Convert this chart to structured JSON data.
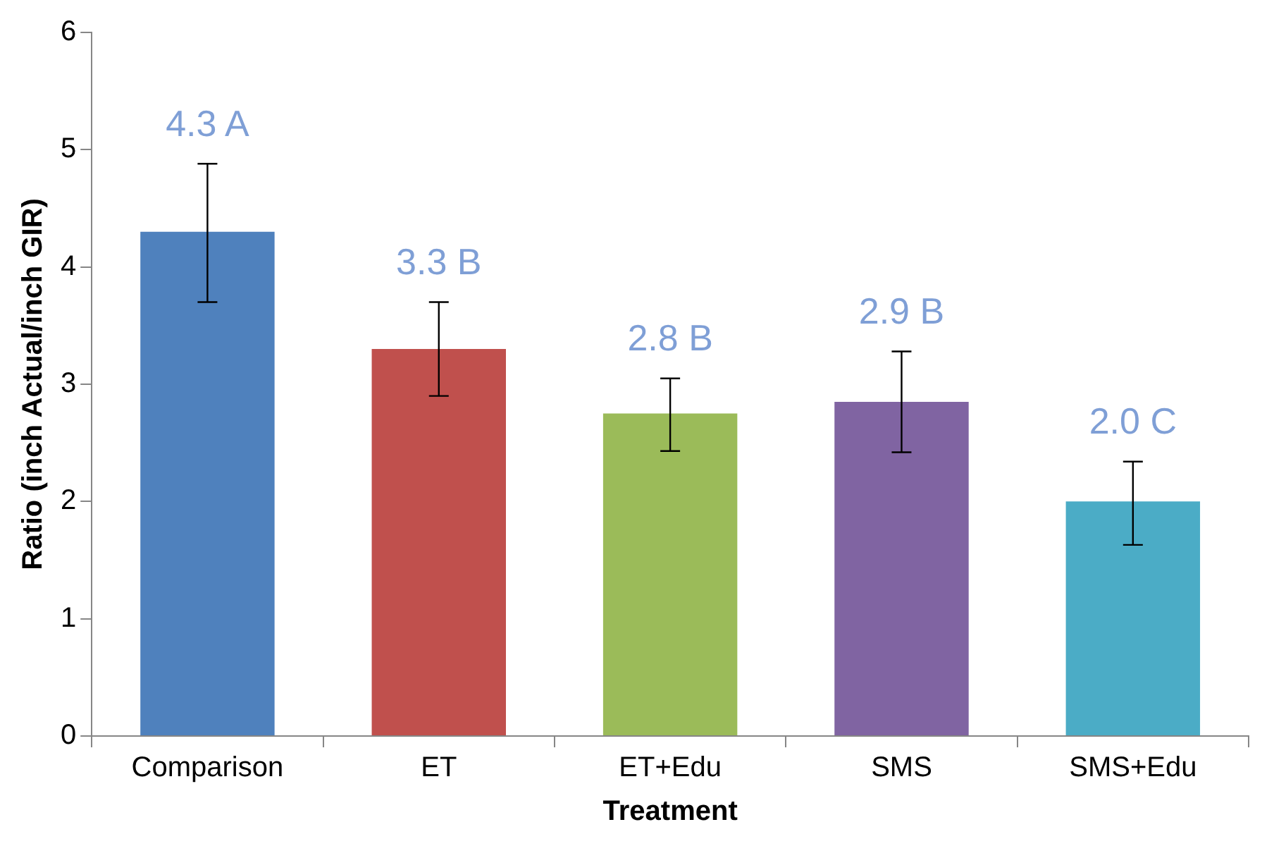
{
  "chart_data": {
    "type": "bar",
    "xlabel": "Treatment",
    "ylabel": "Ratio (inch Actual/inch GIR)",
    "categories": [
      "Comparison",
      "ET",
      "ET+Edu",
      "SMS",
      "SMS+Edu"
    ],
    "values": [
      4.3,
      3.3,
      2.75,
      2.85,
      2.0
    ],
    "colors": [
      "#4f81bd",
      "#c0504d",
      "#9bbb59",
      "#8064a2",
      "#4bacc6"
    ],
    "errors": [
      [
        3.7,
        4.88
      ],
      [
        2.9,
        3.7
      ],
      [
        2.43,
        3.05
      ],
      [
        2.42,
        3.28
      ],
      [
        1.63,
        2.34
      ]
    ],
    "value_labels": [
      "4.3 A",
      "3.3 B",
      "2.8 B",
      "2.9 B",
      "2.0 C"
    ],
    "ylim": [
      0,
      6
    ],
    "yticks": [
      0,
      1,
      2,
      3,
      4,
      5,
      6
    ],
    "grid": false,
    "legend": false
  }
}
